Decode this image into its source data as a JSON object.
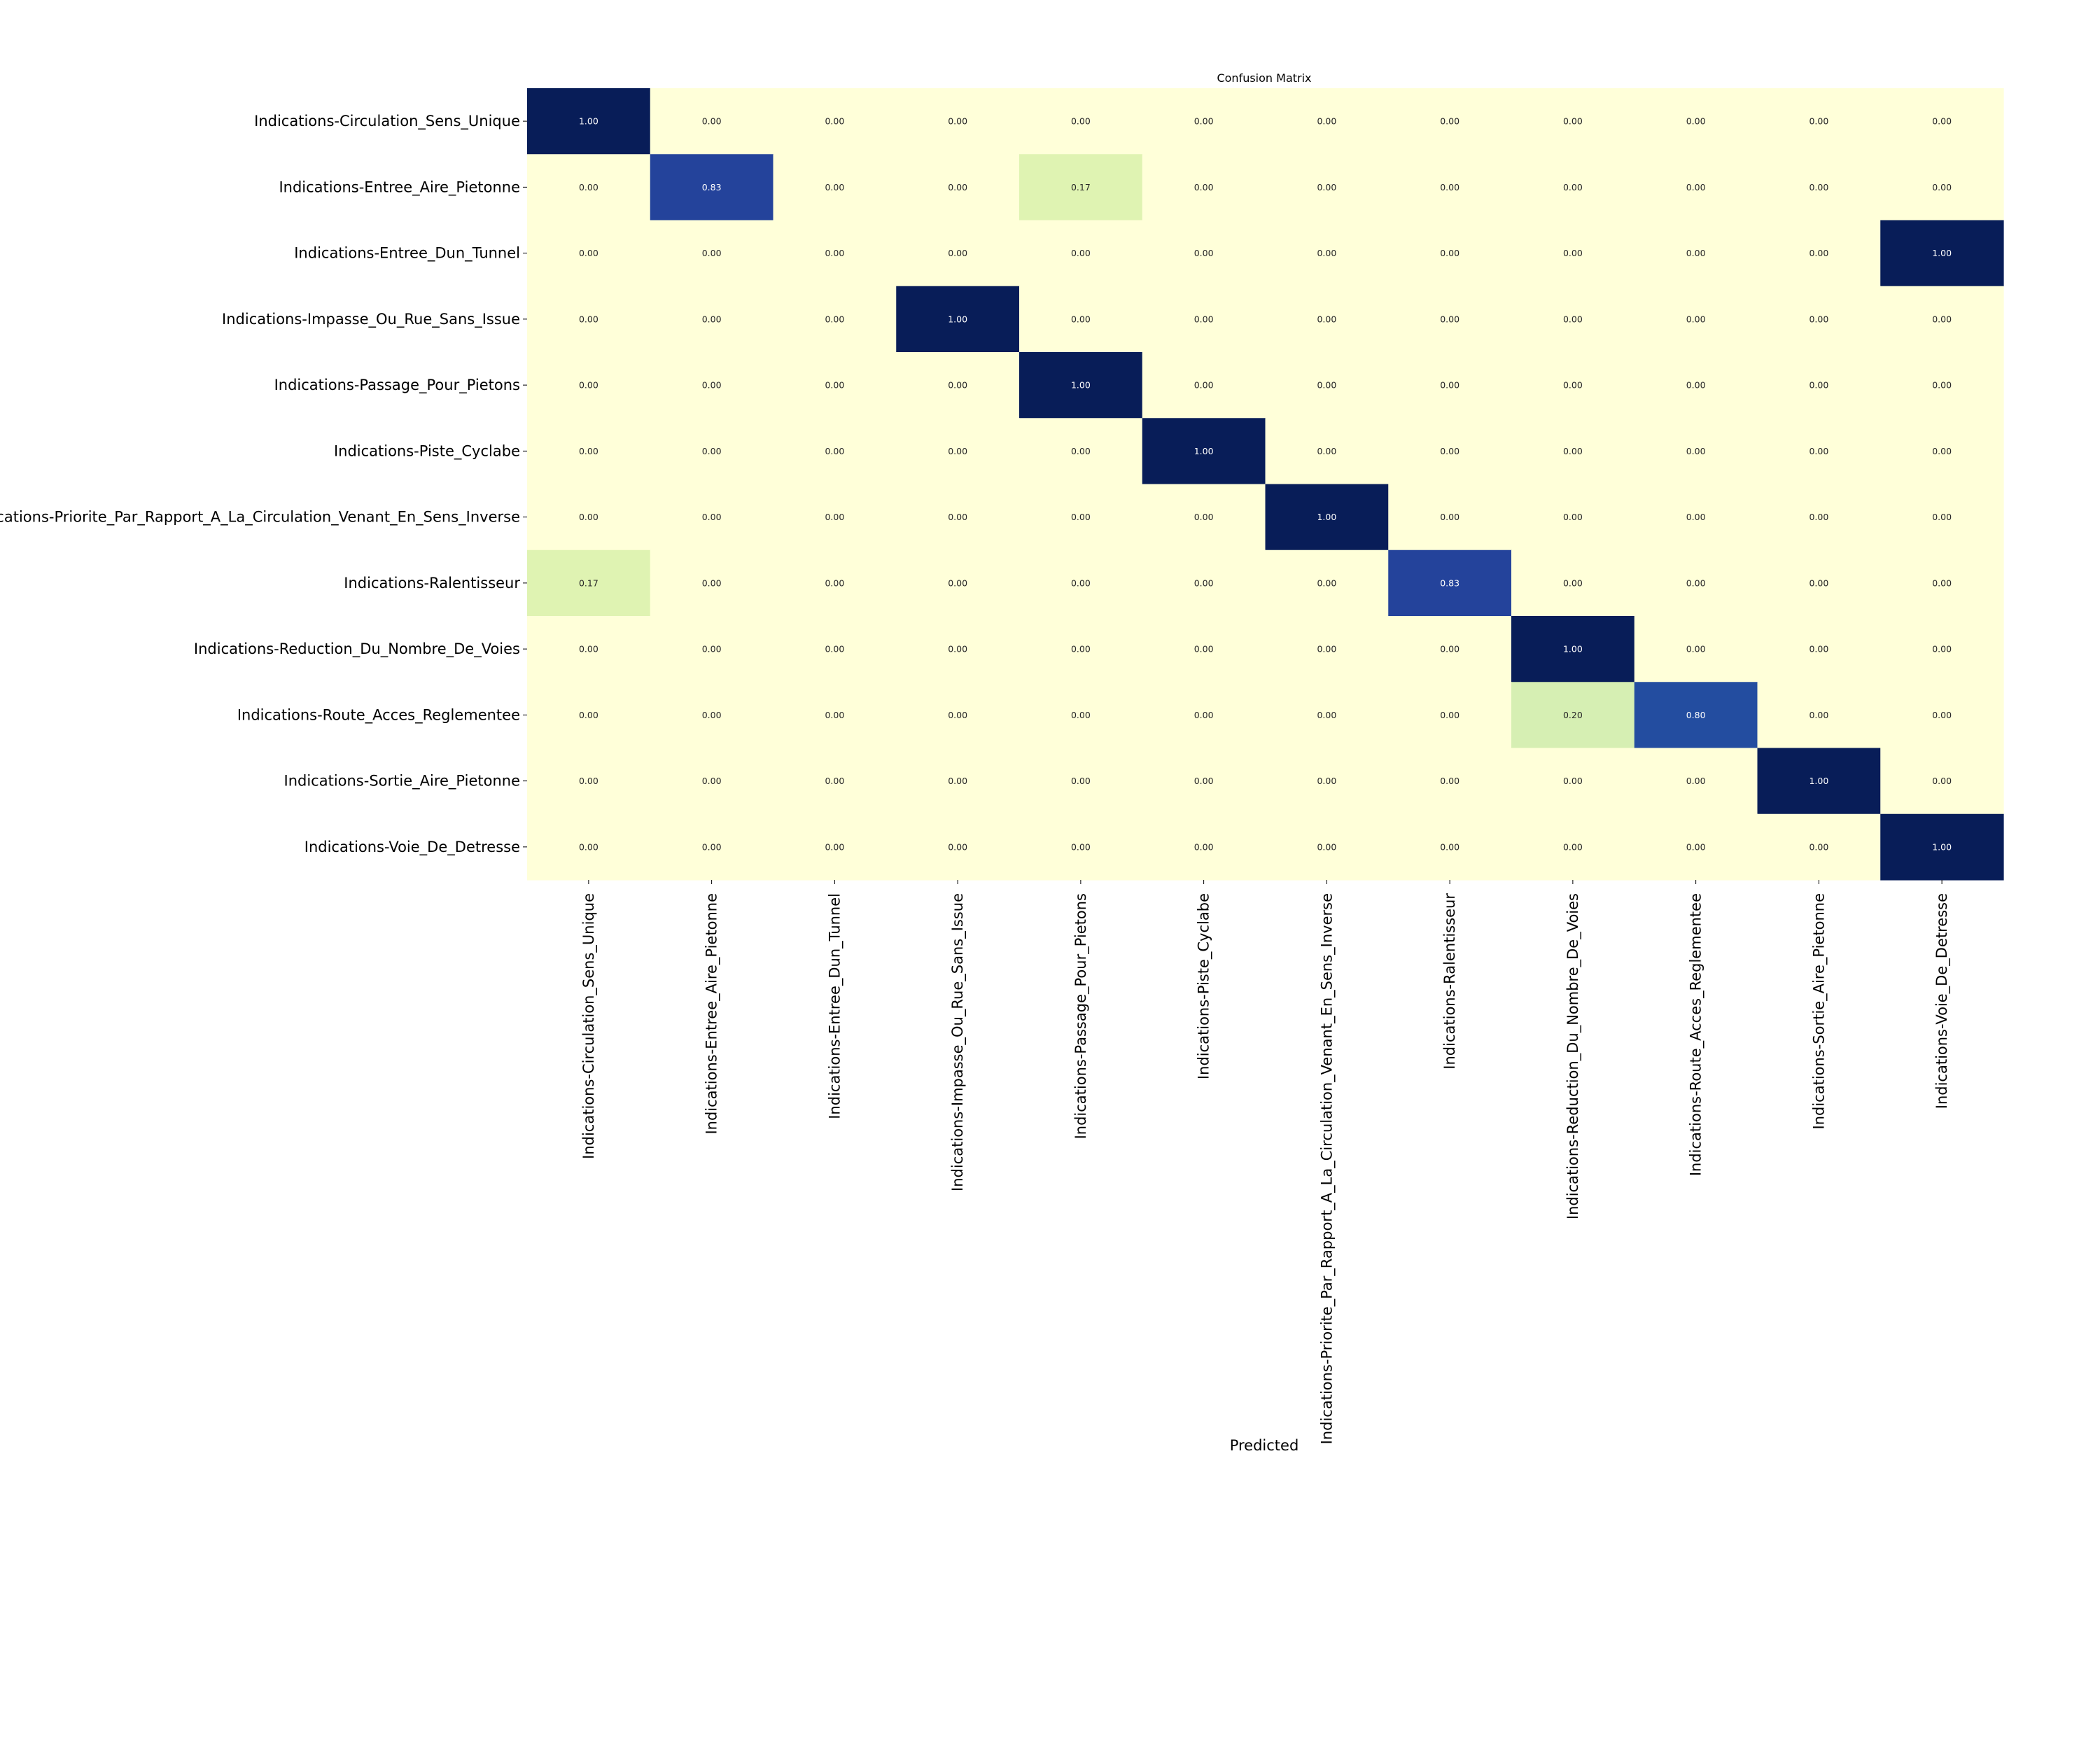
{
  "chart_data": {
    "type": "heatmap",
    "title": "Confusion Matrix",
    "xlabel": "Predicted",
    "ylabel": "",
    "colormap": "YlGnBu",
    "value_range": [
      0,
      1
    ],
    "colorbar": false,
    "row_labels": [
      "Indications-Circulation_Sens_Unique",
      "Indications-Entree_Aire_Pietonne",
      "Indications-Entree_Dun_Tunnel",
      "Indications-Impasse_Ou_Rue_Sans_Issue",
      "Indications-Passage_Pour_Pietons",
      "Indications-Piste_Cyclabe",
      "Indications-Priorite_Par_Rapport_A_La_Circulation_Venant_En_Sens_Inverse",
      "Indications-Ralentisseur",
      "Indications-Reduction_Du_Nombre_De_Voies",
      "Indications-Route_Acces_Reglementee",
      "Indications-Sortie_Aire_Pietonne",
      "Indications-Voie_De_Detresse"
    ],
    "col_labels": [
      "Indications-Circulation_Sens_Unique",
      "Indications-Entree_Aire_Pietonne",
      "Indications-Entree_Dun_Tunnel",
      "Indications-Impasse_Ou_Rue_Sans_Issue",
      "Indications-Passage_Pour_Pietons",
      "Indications-Piste_Cyclabe",
      "Indications-Priorite_Par_Rapport_A_La_Circulation_Venant_En_Sens_Inverse",
      "Indications-Ralentisseur",
      "Indications-Reduction_Du_Nombre_De_Voies",
      "Indications-Route_Acces_Reglementee",
      "Indications-Sortie_Aire_Pietonne",
      "Indications-Voie_De_Detresse"
    ],
    "values": [
      [
        1.0,
        0.0,
        0.0,
        0.0,
        0.0,
        0.0,
        0.0,
        0.0,
        0.0,
        0.0,
        0.0,
        0.0
      ],
      [
        0.0,
        0.83,
        0.0,
        0.0,
        0.17,
        0.0,
        0.0,
        0.0,
        0.0,
        0.0,
        0.0,
        0.0
      ],
      [
        0.0,
        0.0,
        0.0,
        0.0,
        0.0,
        0.0,
        0.0,
        0.0,
        0.0,
        0.0,
        0.0,
        1.0
      ],
      [
        0.0,
        0.0,
        0.0,
        1.0,
        0.0,
        0.0,
        0.0,
        0.0,
        0.0,
        0.0,
        0.0,
        0.0
      ],
      [
        0.0,
        0.0,
        0.0,
        0.0,
        1.0,
        0.0,
        0.0,
        0.0,
        0.0,
        0.0,
        0.0,
        0.0
      ],
      [
        0.0,
        0.0,
        0.0,
        0.0,
        0.0,
        1.0,
        0.0,
        0.0,
        0.0,
        0.0,
        0.0,
        0.0
      ],
      [
        0.0,
        0.0,
        0.0,
        0.0,
        0.0,
        0.0,
        1.0,
        0.0,
        0.0,
        0.0,
        0.0,
        0.0
      ],
      [
        0.17,
        0.0,
        0.0,
        0.0,
        0.0,
        0.0,
        0.0,
        0.83,
        0.0,
        0.0,
        0.0,
        0.0
      ],
      [
        0.0,
        0.0,
        0.0,
        0.0,
        0.0,
        0.0,
        0.0,
        0.0,
        1.0,
        0.0,
        0.0,
        0.0
      ],
      [
        0.0,
        0.0,
        0.0,
        0.0,
        0.0,
        0.0,
        0.0,
        0.0,
        0.2,
        0.8,
        0.0,
        0.0
      ],
      [
        0.0,
        0.0,
        0.0,
        0.0,
        0.0,
        0.0,
        0.0,
        0.0,
        0.0,
        0.0,
        1.0,
        0.0
      ],
      [
        0.0,
        0.0,
        0.0,
        0.0,
        0.0,
        0.0,
        0.0,
        0.0,
        0.0,
        0.0,
        0.0,
        1.0
      ]
    ],
    "colors": {
      "low": "#ffffd9",
      "c017": "#e3f4b3",
      "c020": "#d6efb3",
      "c080": "#2350a1",
      "c083": "#2446a0",
      "high": "#081d58",
      "dark_text": "#262626",
      "light_text": "#ffffff"
    }
  }
}
